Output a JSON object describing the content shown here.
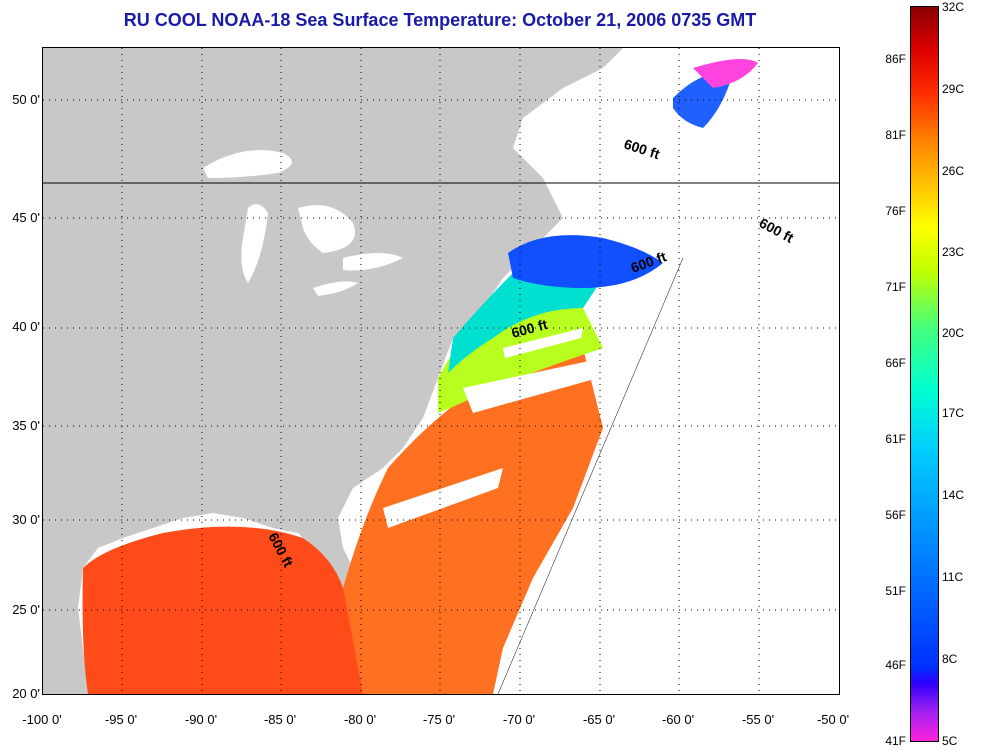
{
  "title": "RU COOL  NOAA-18  Sea Surface Temperature:  October 21, 2006 0735 GMT",
  "map": {
    "lat_labels": [
      "50 0'",
      "45 0'",
      "40 0'",
      "35 0'",
      "30 0'",
      "25 0'",
      "20 0'"
    ],
    "lon_labels": [
      "-100 0'",
      "-95 0'",
      "-90 0'",
      "-85 0'",
      "-80 0'",
      "-75 0'",
      "-70 0'",
      "-65 0'",
      "-60 0'",
      "-55 0'",
      "-50 0'"
    ],
    "isobath_label": "600 ft",
    "colors": {
      "land": "#c8c8c8",
      "no_data": "#ffffff",
      "grid": "#000000"
    }
  },
  "colorbar": {
    "fahrenheit": [
      "86F",
      "81F",
      "76F",
      "71F",
      "66F",
      "61F",
      "56F",
      "51F",
      "46F",
      "41F"
    ],
    "celsius": [
      "32C",
      "29C",
      "26C",
      "23C",
      "20C",
      "17C",
      "14C",
      "11C",
      "8C",
      "5C"
    ]
  }
}
